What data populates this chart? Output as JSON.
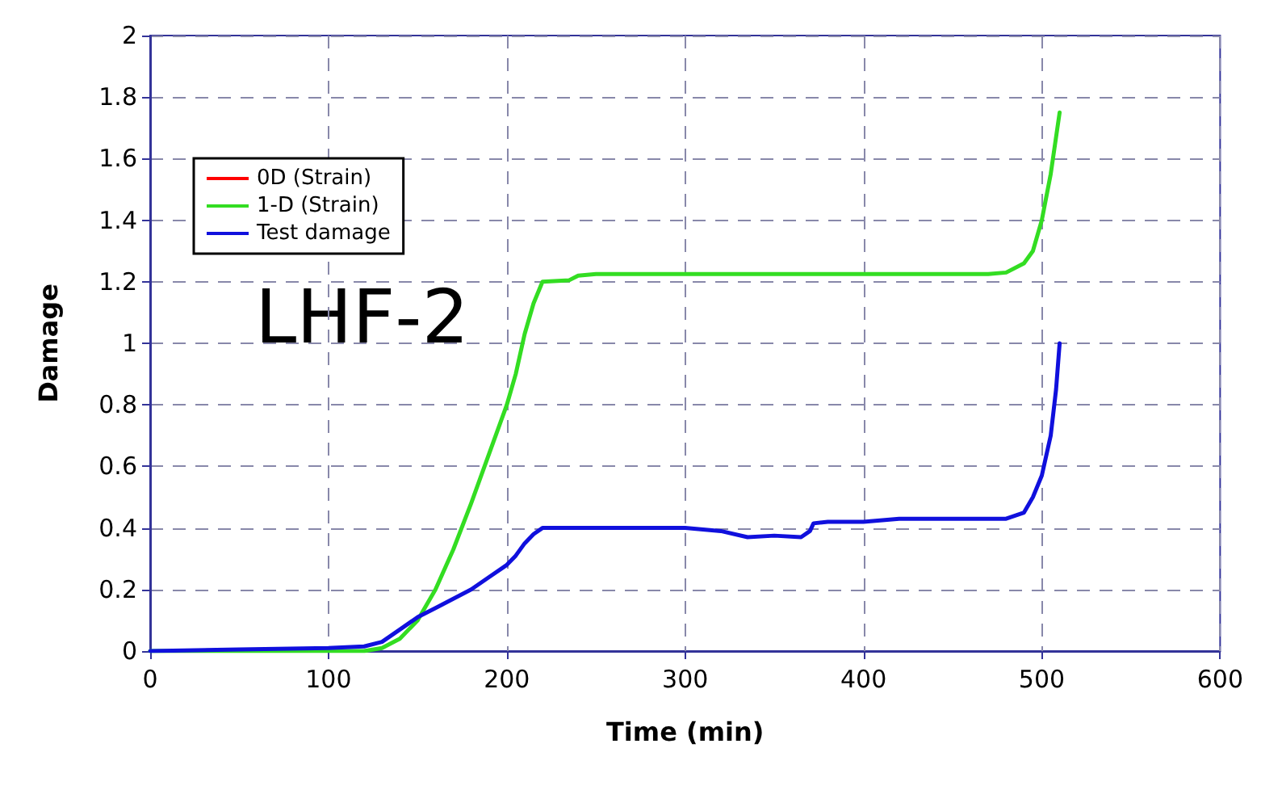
{
  "chart_data": {
    "type": "line",
    "xlabel": "Time (min)",
    "ylabel": "Damage",
    "annotations": [
      "LHF-2"
    ],
    "xlim": [
      0,
      600
    ],
    "xticks": [
      0,
      100,
      200,
      300,
      400,
      500,
      600
    ],
    "ylim": [
      0,
      2
    ],
    "yticks": [
      0,
      0.2,
      0.4,
      0.6,
      0.8,
      1,
      1.2,
      1.4,
      1.6,
      1.8,
      2
    ],
    "grid": true,
    "legend": "top left",
    "marker": "none",
    "line_style": "solid",
    "series": [
      {
        "name": "0D (Strain)",
        "color": "#ff0000"
      },
      {
        "name": "1-D (Strain)",
        "color": "#33dd22",
        "x": [
          0,
          120,
          130,
          140,
          150,
          160,
          170,
          180,
          190,
          200,
          205,
          210,
          215,
          220,
          235,
          240,
          250,
          300,
          400,
          470,
          480,
          490,
          495,
          500,
          505,
          510
        ],
        "values": [
          0,
          0,
          0.01,
          0.04,
          0.1,
          0.2,
          0.33,
          0.48,
          0.64,
          0.8,
          0.9,
          1.03,
          1.13,
          1.2,
          1.205,
          1.22,
          1.225,
          1.225,
          1.225,
          1.225,
          1.23,
          1.26,
          1.3,
          1.4,
          1.55,
          1.75
        ]
      },
      {
        "name": "Test damage",
        "color": "#1010dd",
        "x": [
          0,
          50,
          100,
          120,
          130,
          140,
          150,
          160,
          170,
          180,
          190,
          200,
          205,
          210,
          215,
          220,
          240,
          260,
          300,
          320,
          335,
          350,
          365,
          370,
          372,
          380,
          400,
          420,
          450,
          480,
          490,
          495,
          500,
          505,
          508,
          510
        ],
        "values": [
          0,
          0.005,
          0.01,
          0.015,
          0.03,
          0.07,
          0.11,
          0.14,
          0.17,
          0.2,
          0.24,
          0.28,
          0.31,
          0.35,
          0.38,
          0.4,
          0.4,
          0.4,
          0.4,
          0.39,
          0.37,
          0.375,
          0.37,
          0.39,
          0.415,
          0.42,
          0.42,
          0.43,
          0.43,
          0.43,
          0.45,
          0.5,
          0.57,
          0.7,
          0.85,
          1.0
        ]
      }
    ]
  }
}
